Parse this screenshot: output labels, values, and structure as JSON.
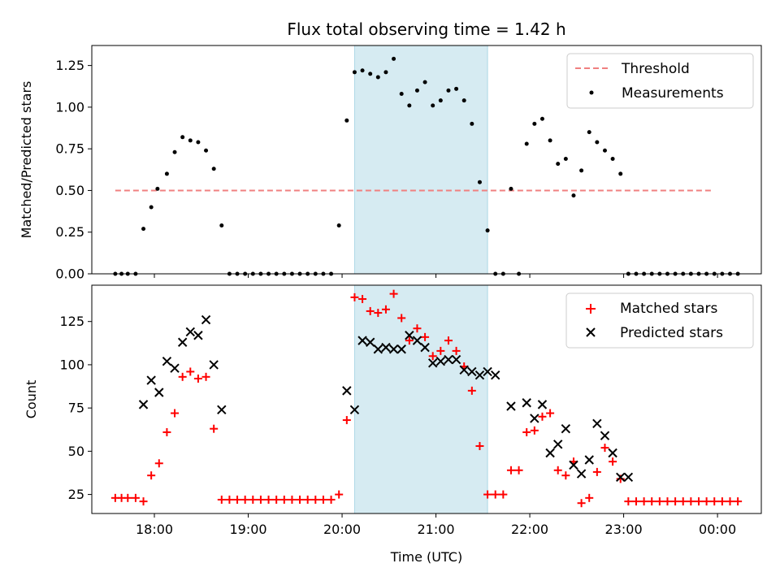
{
  "chart_data": {
    "title": "Flux total observing time = 1.42 h",
    "type": "scatter",
    "highlight_band": {
      "x": [
        "20:08",
        "21:33"
      ],
      "color": "#add8e6"
    },
    "shared_x": {
      "xlabel": "Time (UTC)",
      "xlim": [
        "17:20",
        "00:28"
      ],
      "ticks": [
        "18:00",
        "19:00",
        "20:00",
        "21:00",
        "22:00",
        "23:00",
        "00:00"
      ]
    },
    "panels": [
      {
        "id": "top",
        "ylabel": "Matched/Predicted stars",
        "ylim": [
          0,
          1.37
        ],
        "yticks": [
          "0.00",
          "0.25",
          "0.50",
          "0.75",
          "1.00",
          "1.25"
        ],
        "legend": {
          "placement": "upper right",
          "entries": [
            "Threshold",
            "Measurements"
          ]
        },
        "series": [
          {
            "name": "Threshold",
            "type": "line",
            "style": "dashed",
            "color": "#f08080",
            "x": [
              "17:35",
              "23:57"
            ],
            "y": [
              0.5,
              0.5
            ]
          },
          {
            "name": "Measurements",
            "type": "scatter",
            "marker": "dot",
            "color": "#000000",
            "x": [
              "17:35",
              "17:39",
              "17:43",
              "17:48",
              "17:53",
              "17:58",
              "18:02",
              "18:08",
              "18:13",
              "18:18",
              "18:23",
              "18:28",
              "18:33",
              "18:38",
              "18:43",
              "18:48",
              "18:53",
              "18:58",
              "19:03",
              "19:08",
              "19:13",
              "19:18",
              "19:23",
              "19:28",
              "19:33",
              "19:38",
              "19:43",
              "19:48",
              "19:53",
              "19:58",
              "20:03",
              "20:08",
              "20:13",
              "20:18",
              "20:23",
              "20:28",
              "20:33",
              "20:38",
              "20:43",
              "20:48",
              "20:53",
              "20:58",
              "21:03",
              "21:08",
              "21:13",
              "21:18",
              "21:23",
              "21:28",
              "21:33",
              "21:38",
              "21:43",
              "21:48",
              "21:53",
              "21:58",
              "22:03",
              "22:08",
              "22:13",
              "22:18",
              "22:23",
              "22:28",
              "22:33",
              "22:38",
              "22:43",
              "22:48",
              "22:53",
              "22:58",
              "23:03",
              "23:08",
              "23:13",
              "23:18",
              "23:23",
              "23:28",
              "23:33",
              "23:38",
              "23:43",
              "23:48",
              "23:53",
              "23:58",
              "00:03",
              "00:08",
              "00:13"
            ],
            "y": [
              0,
              0,
              0,
              0,
              0.27,
              0.4,
              0.51,
              0.6,
              0.73,
              0.82,
              0.8,
              0.79,
              0.74,
              0.63,
              0.29,
              0,
              0,
              0,
              0,
              0,
              0,
              0,
              0,
              0,
              0,
              0,
              0,
              0,
              0,
              0.29,
              0.92,
              1.21,
              1.22,
              1.2,
              1.18,
              1.21,
              1.29,
              1.08,
              1.01,
              1.1,
              1.15,
              1.01,
              1.04,
              1.1,
              1.11,
              1.04,
              0.9,
              0.55,
              0.26,
              0,
              0,
              0.51,
              0,
              0.78,
              0.9,
              0.93,
              0.8,
              0.66,
              0.69,
              0.47,
              0.62,
              0.85,
              0.79,
              0.74,
              0.69,
              0.6,
              0,
              0,
              0,
              0,
              0,
              0,
              0,
              0,
              0,
              0,
              0,
              0,
              0,
              0,
              0
            ]
          }
        ]
      },
      {
        "id": "bottom",
        "ylabel": "Count",
        "ylim": [
          14,
          146
        ],
        "yticks": [
          "25",
          "50",
          "75",
          "100",
          "125"
        ],
        "legend": {
          "placement": "upper right",
          "entries": [
            "Matched stars",
            "Predicted stars"
          ]
        },
        "series": [
          {
            "name": "Matched stars",
            "type": "scatter",
            "marker": "plus",
            "color": "#ff0000",
            "x": [
              "17:35",
              "17:39",
              "17:43",
              "17:48",
              "17:53",
              "17:58",
              "18:03",
              "18:08",
              "18:13",
              "18:18",
              "18:23",
              "18:28",
              "18:33",
              "18:38",
              "18:43",
              "18:48",
              "18:53",
              "18:58",
              "19:03",
              "19:08",
              "19:13",
              "19:18",
              "19:23",
              "19:28",
              "19:33",
              "19:38",
              "19:43",
              "19:48",
              "19:53",
              "19:58",
              "20:03",
              "20:08",
              "20:13",
              "20:18",
              "20:23",
              "20:28",
              "20:33",
              "20:38",
              "20:43",
              "20:48",
              "20:53",
              "20:58",
              "21:03",
              "21:08",
              "21:13",
              "21:18",
              "21:23",
              "21:28",
              "21:33",
              "21:38",
              "21:43",
              "21:48",
              "21:53",
              "21:58",
              "22:03",
              "22:08",
              "22:13",
              "22:18",
              "22:23",
              "22:28",
              "22:33",
              "22:38",
              "22:43",
              "22:48",
              "22:53",
              "22:58",
              "23:03",
              "23:08",
              "23:13",
              "23:18",
              "23:23",
              "23:28",
              "23:33",
              "23:38",
              "23:43",
              "23:48",
              "23:53",
              "23:58",
              "00:03",
              "00:08",
              "00:13"
            ],
            "y": [
              23,
              23,
              23,
              23,
              21,
              36,
              43,
              61,
              72,
              93,
              96,
              92,
              93,
              63,
              22,
              22,
              22,
              22,
              22,
              22,
              22,
              22,
              22,
              22,
              22,
              22,
              22,
              22,
              22,
              25,
              68,
              139,
              138,
              131,
              130,
              132,
              141,
              127,
              114,
              121,
              116,
              105,
              108,
              114,
              108,
              99,
              85,
              53,
              25,
              25,
              25,
              39,
              39,
              61,
              62,
              70,
              72,
              39,
              36,
              44,
              20,
              23,
              38,
              52,
              44,
              34,
              21,
              21,
              21,
              21,
              21,
              21,
              21,
              21,
              21,
              21,
              21,
              21,
              21,
              21,
              21
            ]
          },
          {
            "name": "Predicted stars",
            "type": "scatter",
            "marker": "x",
            "color": "#000000",
            "x": [
              "17:53",
              "17:58",
              "18:03",
              "18:08",
              "18:13",
              "18:18",
              "18:23",
              "18:28",
              "18:33",
              "18:38",
              "18:43",
              "20:03",
              "20:08",
              "20:13",
              "20:18",
              "20:23",
              "20:28",
              "20:33",
              "20:38",
              "20:43",
              "20:48",
              "20:53",
              "20:58",
              "21:03",
              "21:08",
              "21:13",
              "21:18",
              "21:23",
              "21:28",
              "21:33",
              "21:38",
              "21:48",
              "21:58",
              "22:03",
              "22:08",
              "22:13",
              "22:18",
              "22:23",
              "22:28",
              "22:33",
              "22:38",
              "22:43",
              "22:48",
              "22:53",
              "22:58",
              "23:03"
            ],
            "y": [
              77,
              91,
              84,
              102,
              98,
              113,
              119,
              117,
              126,
              100,
              74,
              85,
              74,
              114,
              113,
              109,
              110,
              109,
              109,
              117,
              114,
              110,
              101,
              102,
              103,
              103,
              97,
              96,
              94,
              96,
              94,
              76,
              78,
              69,
              77,
              49,
              54,
              63,
              42,
              37,
              45,
              66,
              59,
              49,
              35,
              35
            ]
          }
        ]
      }
    ]
  }
}
